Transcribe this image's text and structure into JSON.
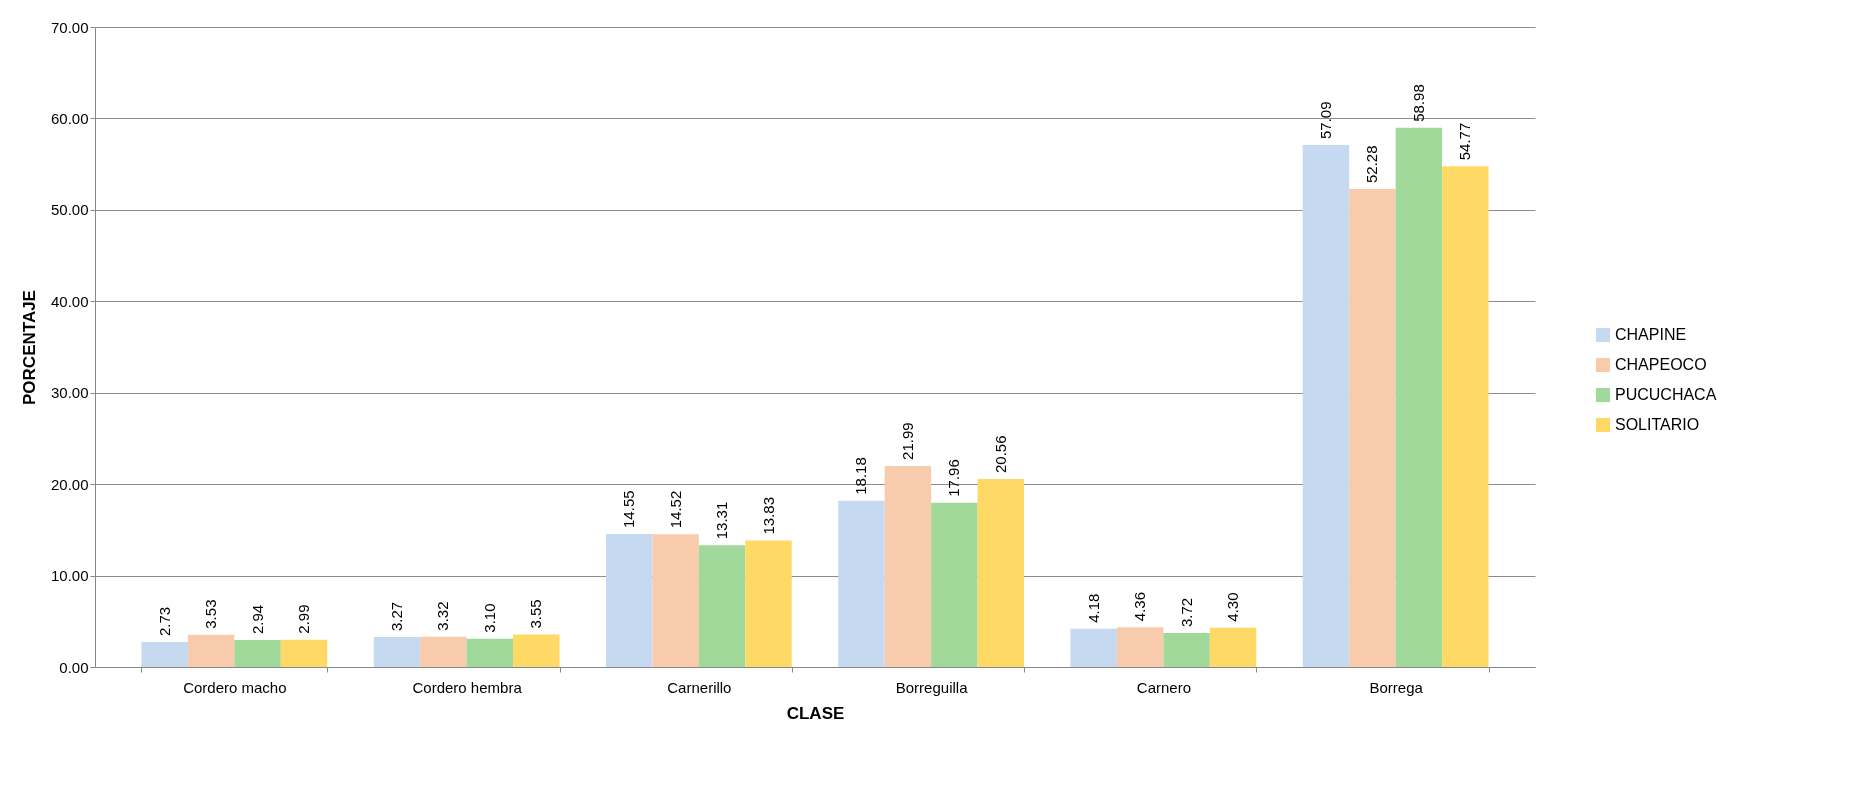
{
  "chart_data": {
    "type": "bar",
    "xlabel": "CLASE",
    "ylabel": "PORCENTAJE",
    "categories": [
      "Cordero macho",
      "Cordero hembra",
      "Carnerillo",
      "Borreguilla",
      "Carnero",
      "Borrega"
    ],
    "series": [
      {
        "name": "CHAPINE",
        "color": "#c5d9f1",
        "values": [
          2.73,
          3.27,
          14.55,
          18.18,
          4.18,
          57.09
        ],
        "value_labels": [
          "2.73",
          "3.27",
          "14.55",
          "18.18",
          "4.18",
          "57.09"
        ]
      },
      {
        "name": "CHAPEOCO",
        "color": "#f8cbad",
        "values": [
          3.53,
          3.32,
          14.52,
          21.99,
          4.36,
          52.28
        ],
        "value_labels": [
          "3.53",
          "3.32",
          "14.52",
          "21.99",
          "4.36",
          "52.28"
        ]
      },
      {
        "name": "PUCUCHACA",
        "color": "#a1d99b",
        "values": [
          2.94,
          3.1,
          13.31,
          17.96,
          3.72,
          58.98
        ],
        "value_labels": [
          "2.94",
          "3.10",
          "13.31",
          "17.96",
          "3.72",
          "58.98"
        ]
      },
      {
        "name": "SOLITARIO",
        "color": "#ffd966",
        "values": [
          2.99,
          3.55,
          13.83,
          20.56,
          4.3,
          54.77
        ],
        "value_labels": [
          "2.99",
          "3.55",
          "13.83",
          "20.56",
          "4.30",
          "54.77"
        ]
      }
    ],
    "ylim": [
      0,
      70
    ],
    "yticks": [
      {
        "value": 0,
        "label": "0.00"
      },
      {
        "value": 10,
        "label": "10.00"
      },
      {
        "value": 20,
        "label": "20.00"
      },
      {
        "value": 30,
        "label": "30.00"
      },
      {
        "value": 40,
        "label": "40.00"
      },
      {
        "value": 50,
        "label": "50.00"
      },
      {
        "value": 60,
        "label": "60.00"
      },
      {
        "value": 70,
        "label": "70.00"
      }
    ],
    "grid": "y",
    "legend": "right"
  }
}
